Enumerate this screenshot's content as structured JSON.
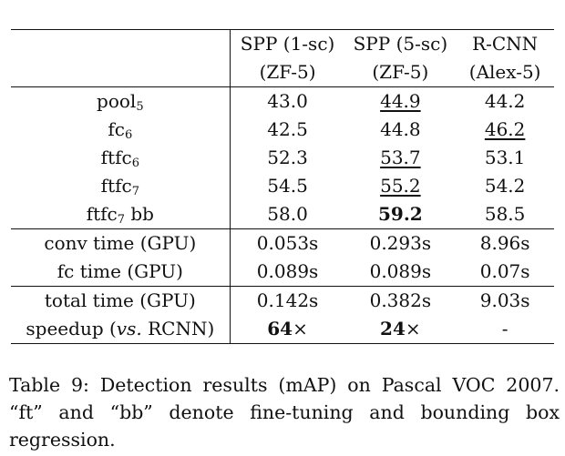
{
  "table": {
    "header": {
      "row1": [
        "",
        "SPP (1-sc)",
        "SPP (5-sc)",
        "R-CNN"
      ],
      "row2": [
        "",
        "(ZF-5)",
        "(ZF-5)",
        "(Alex-5)"
      ]
    },
    "rows": [
      {
        "label_base": "pool",
        "label_sub": "5",
        "label_suffix": "",
        "values": [
          "43.0",
          "44.9",
          "44.2"
        ],
        "underline": [
          false,
          true,
          false
        ],
        "bold": [
          false,
          false,
          false
        ]
      },
      {
        "label_base": "fc",
        "label_sub": "6",
        "label_suffix": "",
        "values": [
          "42.5",
          "44.8",
          "46.2"
        ],
        "underline": [
          false,
          false,
          true
        ],
        "bold": [
          false,
          false,
          false
        ]
      },
      {
        "label_base": "ftfc",
        "label_sub": "6",
        "label_suffix": "",
        "values": [
          "52.3",
          "53.7",
          "53.1"
        ],
        "underline": [
          false,
          true,
          false
        ],
        "bold": [
          false,
          false,
          false
        ]
      },
      {
        "label_base": "ftfc",
        "label_sub": "7",
        "label_suffix": "",
        "values": [
          "54.5",
          "55.2",
          "54.2"
        ],
        "underline": [
          false,
          true,
          false
        ],
        "bold": [
          false,
          false,
          false
        ]
      },
      {
        "label_base": "ftfc",
        "label_sub": "7",
        "label_suffix": " bb",
        "values": [
          "58.0",
          "59.2",
          "58.5"
        ],
        "underline": [
          false,
          false,
          false
        ],
        "bold": [
          false,
          true,
          false
        ]
      },
      {
        "label": "conv time (GPU)",
        "values": [
          "0.053s",
          "0.293s",
          "8.96s"
        ]
      },
      {
        "label": "fc time (GPU)",
        "values": [
          "0.089s",
          "0.089s",
          "0.07s"
        ]
      },
      {
        "label": "total time (GPU)",
        "values": [
          "0.142s",
          "0.382s",
          "9.03s"
        ]
      },
      {
        "label_pre": "speedup (",
        "label_italic": "vs.",
        "label_post": " RCNN)",
        "values": [
          "64",
          "24",
          "-"
        ],
        "value_suffix": [
          "×",
          "×",
          ""
        ],
        "bold": [
          true,
          true,
          false
        ]
      }
    ]
  },
  "caption": "Table 9: Detection results (mAP) on Pascal VOC 2007. “ft” and “bb” denote fine-tuning and bounding box regression."
}
